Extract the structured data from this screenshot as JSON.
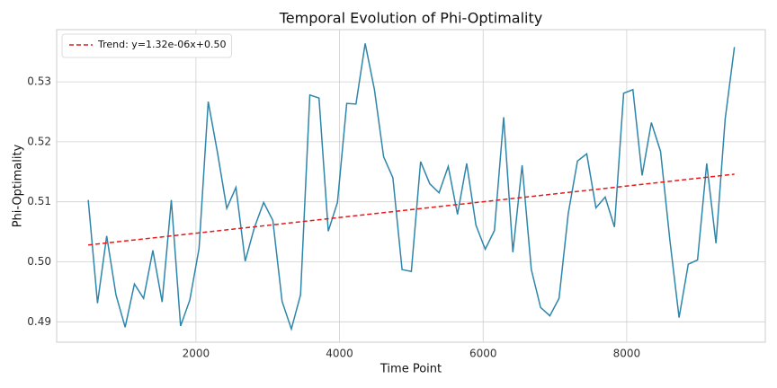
{
  "chart_data": {
    "type": "line",
    "title": "Temporal Evolution of Phi-Optimality",
    "xlabel": "Time Point",
    "ylabel": "Phi-Optimality",
    "xlim": [
      60,
      9930
    ],
    "ylim": [
      0.4866,
      0.5387
    ],
    "xticks": [
      2000,
      4000,
      6000,
      8000
    ],
    "yticks": [
      0.49,
      {
        "value": 0.5,
        "label": "0.50"
      },
      0.51,
      0.52,
      0.53
    ],
    "grid": true,
    "legend": "upper left",
    "series": [
      {
        "color": "#2e86ab",
        "x": [
          500,
          629,
          757,
          886,
          1014,
          1143,
          1271,
          1400,
          1529,
          1657,
          1786,
          1914,
          2043,
          2171,
          2300,
          2429,
          2557,
          2686,
          2814,
          2943,
          3071,
          3200,
          3329,
          3457,
          3586,
          3714,
          3843,
          3971,
          4100,
          4229,
          4357,
          4486,
          4614,
          4743,
          4871,
          5000,
          5129,
          5257,
          5386,
          5514,
          5643,
          5771,
          5900,
          6029,
          6157,
          6286,
          6414,
          6543,
          6671,
          6800,
          6929,
          7057,
          7186,
          7314,
          7443,
          7571,
          7700,
          7829,
          7957,
          8086,
          8214,
          8343,
          8471,
          8600,
          8729,
          8857,
          8986,
          9114,
          9243,
          9371,
          9500
        ],
        "values": [
          0.5103,
          0.4931,
          0.5043,
          0.4945,
          0.4891,
          0.4963,
          0.4939,
          0.5019,
          0.4933,
          0.5103,
          0.4893,
          0.4936,
          0.5022,
          0.5267,
          0.5182,
          0.5089,
          0.5124,
          0.5001,
          0.5057,
          0.5099,
          0.5069,
          0.4934,
          0.4888,
          0.4945,
          0.5278,
          0.5273,
          0.5051,
          0.5099,
          0.5264,
          0.5263,
          0.5364,
          0.5287,
          0.5175,
          0.514,
          0.4987,
          0.4984,
          0.5167,
          0.513,
          0.5115,
          0.5159,
          0.5079,
          0.5164,
          0.5061,
          0.5021,
          0.5052,
          0.5241,
          0.5016,
          0.5161,
          0.4987,
          0.4924,
          0.491,
          0.4939,
          0.5081,
          0.5168,
          0.518,
          0.509,
          0.5108,
          0.5058,
          0.5281,
          0.5287,
          0.5144,
          0.5232,
          0.5184,
          0.5037,
          0.4907,
          0.4996,
          0.5003,
          0.5164,
          0.5031,
          0.5238,
          0.5358
        ]
      },
      {
        "name": "Trend: y=1.32e-06x+0.50",
        "color": "#e41a1c",
        "dashed": true,
        "x": [
          500,
          9500
        ],
        "values": [
          0.5028,
          0.5146
        ]
      }
    ]
  }
}
